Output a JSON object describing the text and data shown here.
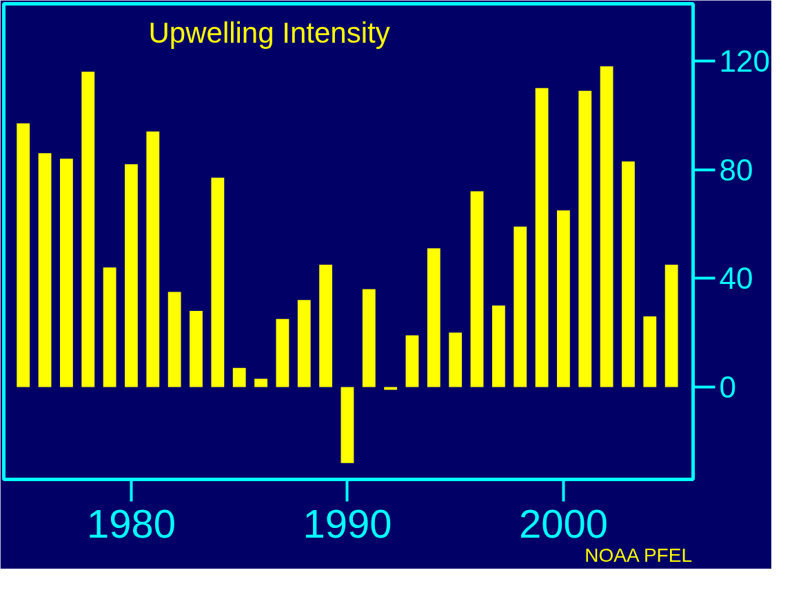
{
  "chart_data": {
    "type": "bar",
    "title": "Upwelling Intensity",
    "x": [
      1975,
      1976,
      1977,
      1978,
      1979,
      1980,
      1981,
      1982,
      1983,
      1984,
      1985,
      1986,
      1987,
      1988,
      1989,
      1990,
      1991,
      1992,
      1993,
      1994,
      1995,
      1996,
      1997,
      1998,
      1999,
      2000,
      2001,
      2002,
      2003,
      2004,
      2005
    ],
    "values": [
      97,
      86,
      84,
      116,
      44,
      82,
      94,
      35,
      28,
      77,
      7,
      3,
      25,
      32,
      45,
      -28,
      36,
      -1,
      19,
      51,
      20,
      72,
      30,
      59,
      110,
      65,
      109,
      118,
      83,
      26,
      45
    ],
    "color": "#ffff00",
    "xlim": [
      1974.1,
      2006
    ],
    "ylim": [
      -34,
      141
    ],
    "xticks": [
      1980,
      1990,
      2000
    ],
    "yticks": [
      0,
      40,
      80,
      120
    ],
    "grid": false,
    "annotations": [
      "NOAA PFEL"
    ]
  }
}
